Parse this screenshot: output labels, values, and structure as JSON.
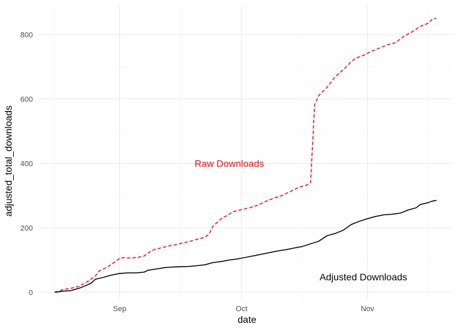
{
  "chart_data": {
    "type": "line",
    "xlabel": "date",
    "ylabel": "adjusted_total_downloads",
    "grid": true,
    "legend": "none",
    "xlim": [
      "2016-08-12",
      "2016-11-22"
    ],
    "ylim": [
      -25,
      890
    ],
    "x_ticks": [
      {
        "date": "2016-09-01",
        "label": "Sep"
      },
      {
        "date": "2016-10-01",
        "label": "Oct"
      },
      {
        "date": "2016-11-01",
        "label": "Nov"
      }
    ],
    "y_ticks": [
      0,
      200,
      400,
      600,
      800
    ],
    "x_minor": [
      "2016-08-16",
      "2016-09-16",
      "2016-10-16",
      "2016-11-16"
    ],
    "y_minor": [
      100,
      300,
      500,
      700
    ],
    "series": [
      {
        "color": "#ff0000",
        "dash": "dashed",
        "points": [
          [
            "2016-08-16",
            0
          ],
          [
            "2016-08-17",
            3
          ],
          [
            "2016-08-18",
            8
          ],
          [
            "2016-08-20",
            12
          ],
          [
            "2016-08-22",
            18
          ],
          [
            "2016-08-24",
            32
          ],
          [
            "2016-08-26",
            50
          ],
          [
            "2016-08-27",
            66
          ],
          [
            "2016-08-29",
            78
          ],
          [
            "2016-08-31",
            95
          ],
          [
            "2016-09-01",
            105
          ],
          [
            "2016-09-02",
            107
          ],
          [
            "2016-09-03",
            106
          ],
          [
            "2016-09-05",
            107
          ],
          [
            "2016-09-07",
            112
          ],
          [
            "2016-09-09",
            130
          ],
          [
            "2016-09-11",
            137
          ],
          [
            "2016-09-13",
            143
          ],
          [
            "2016-09-15",
            148
          ],
          [
            "2016-09-17",
            154
          ],
          [
            "2016-09-19",
            160
          ],
          [
            "2016-09-20",
            164
          ],
          [
            "2016-09-22",
            170
          ],
          [
            "2016-09-23",
            180
          ],
          [
            "2016-09-24",
            205
          ],
          [
            "2016-09-26",
            228
          ],
          [
            "2016-09-27",
            235
          ],
          [
            "2016-09-29",
            250
          ],
          [
            "2016-10-01",
            256
          ],
          [
            "2016-10-03",
            262
          ],
          [
            "2016-10-05",
            270
          ],
          [
            "2016-10-07",
            282
          ],
          [
            "2016-10-09",
            292
          ],
          [
            "2016-10-11",
            300
          ],
          [
            "2016-10-13",
            312
          ],
          [
            "2016-10-15",
            325
          ],
          [
            "2016-10-17",
            332
          ],
          [
            "2016-10-18",
            340
          ],
          [
            "2016-10-19",
            582
          ],
          [
            "2016-10-20",
            610
          ],
          [
            "2016-10-22",
            635
          ],
          [
            "2016-10-24",
            668
          ],
          [
            "2016-10-26",
            690
          ],
          [
            "2016-10-28",
            715
          ],
          [
            "2016-10-29",
            726
          ],
          [
            "2016-10-31",
            735
          ],
          [
            "2016-11-02",
            748
          ],
          [
            "2016-11-04",
            758
          ],
          [
            "2016-11-06",
            768
          ],
          [
            "2016-11-08",
            775
          ],
          [
            "2016-11-10",
            795
          ],
          [
            "2016-11-12",
            808
          ],
          [
            "2016-11-14",
            825
          ],
          [
            "2016-11-16",
            835
          ],
          [
            "2016-11-17",
            848
          ],
          [
            "2016-11-18",
            850
          ]
        ]
      },
      {
        "color": "#000000",
        "dash": "solid",
        "points": [
          [
            "2016-08-16",
            0
          ],
          [
            "2016-08-17",
            1
          ],
          [
            "2016-08-18",
            3
          ],
          [
            "2016-08-20",
            5
          ],
          [
            "2016-08-22",
            12
          ],
          [
            "2016-08-24",
            22
          ],
          [
            "2016-08-25",
            28
          ],
          [
            "2016-08-26",
            40
          ],
          [
            "2016-08-28",
            46
          ],
          [
            "2016-08-30",
            53
          ],
          [
            "2016-09-01",
            58
          ],
          [
            "2016-09-03",
            60
          ],
          [
            "2016-09-05",
            60
          ],
          [
            "2016-09-07",
            62
          ],
          [
            "2016-09-08",
            68
          ],
          [
            "2016-09-10",
            72
          ],
          [
            "2016-09-12",
            76
          ],
          [
            "2016-09-14",
            78
          ],
          [
            "2016-09-16",
            79
          ],
          [
            "2016-09-18",
            80
          ],
          [
            "2016-09-20",
            82
          ],
          [
            "2016-09-22",
            85
          ],
          [
            "2016-09-24",
            92
          ],
          [
            "2016-09-26",
            95
          ],
          [
            "2016-09-28",
            100
          ],
          [
            "2016-09-30",
            103
          ],
          [
            "2016-10-02",
            108
          ],
          [
            "2016-10-04",
            113
          ],
          [
            "2016-10-06",
            118
          ],
          [
            "2016-10-08",
            123
          ],
          [
            "2016-10-10",
            128
          ],
          [
            "2016-10-12",
            132
          ],
          [
            "2016-10-14",
            137
          ],
          [
            "2016-10-16",
            142
          ],
          [
            "2016-10-18",
            150
          ],
          [
            "2016-10-20",
            158
          ],
          [
            "2016-10-22",
            175
          ],
          [
            "2016-10-24",
            182
          ],
          [
            "2016-10-26",
            192
          ],
          [
            "2016-10-28",
            210
          ],
          [
            "2016-10-30",
            220
          ],
          [
            "2016-11-01",
            228
          ],
          [
            "2016-11-03",
            235
          ],
          [
            "2016-11-05",
            240
          ],
          [
            "2016-11-07",
            242
          ],
          [
            "2016-11-09",
            245
          ],
          [
            "2016-11-11",
            255
          ],
          [
            "2016-11-13",
            262
          ],
          [
            "2016-11-14",
            272
          ],
          [
            "2016-11-16",
            278
          ],
          [
            "2016-11-17",
            283
          ],
          [
            "2016-11-18",
            285
          ]
        ]
      }
    ],
    "annotations": [
      {
        "text": "Raw Downloads",
        "x": "2016-09-28",
        "y": 400,
        "color": "#ff0000"
      },
      {
        "text": "Adjusted Downloads",
        "x": "2016-10-31",
        "y": 47,
        "color": "#000000"
      }
    ]
  }
}
